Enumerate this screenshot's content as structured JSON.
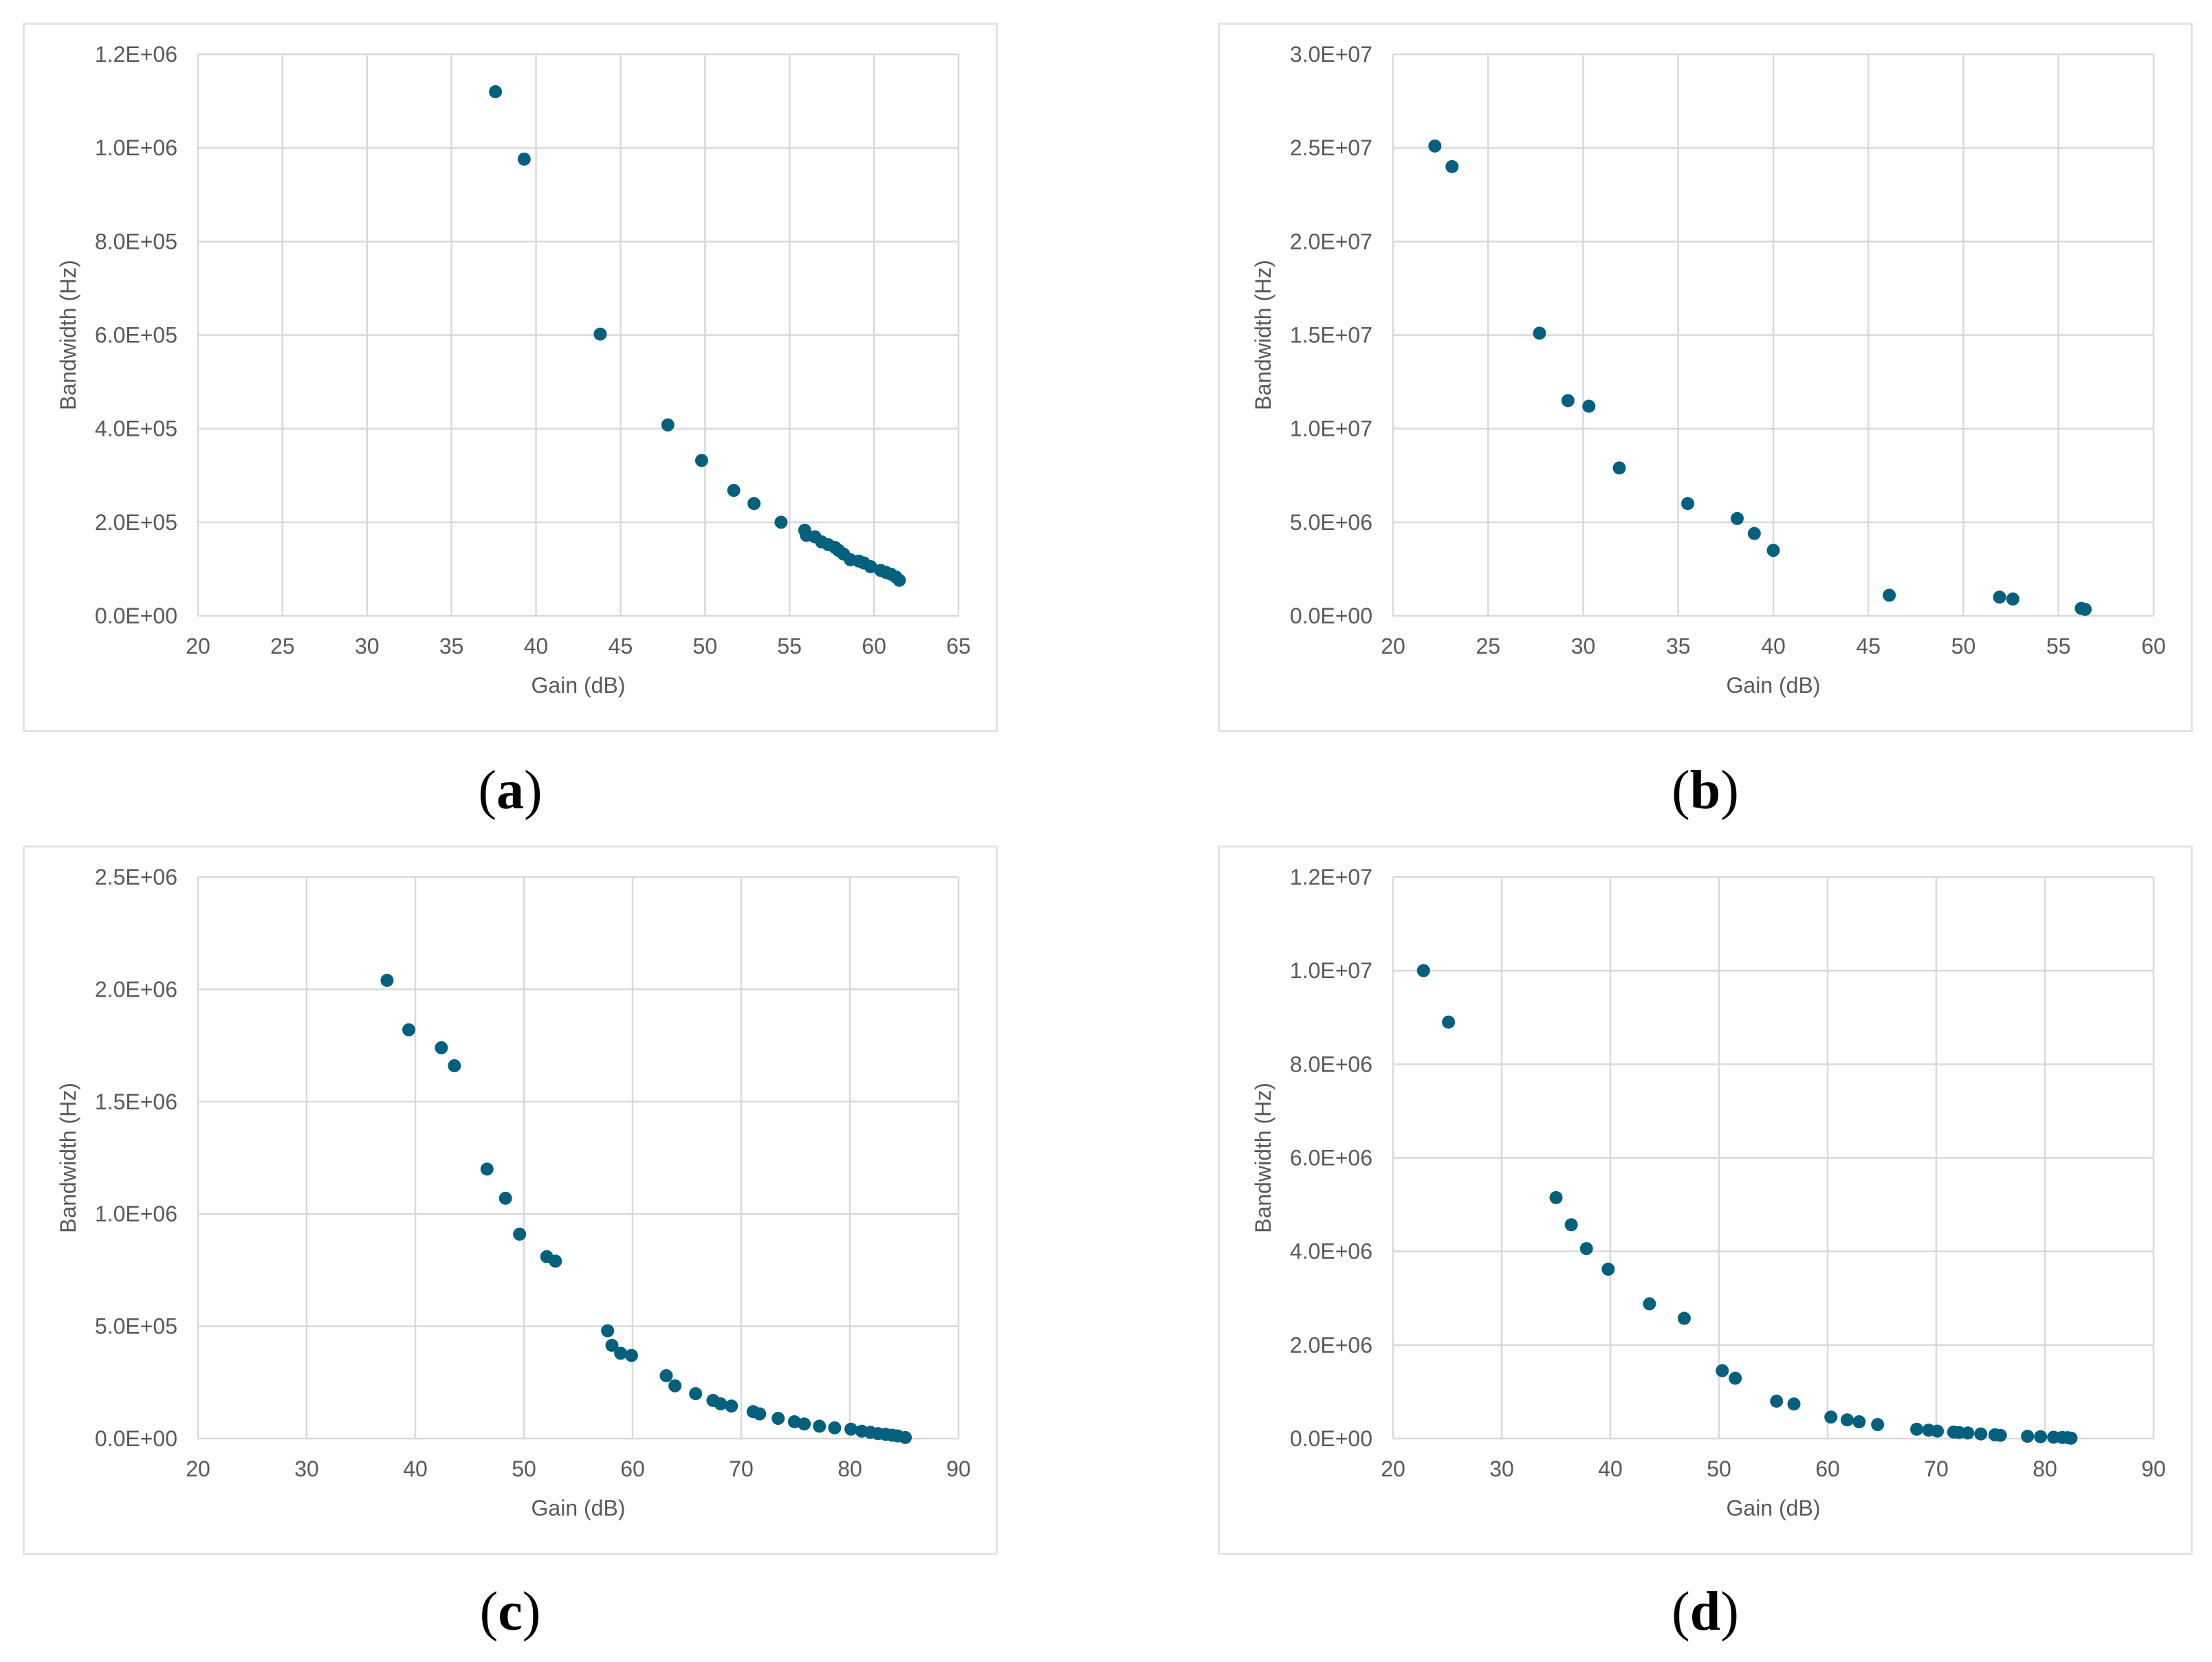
{
  "chart_data": [
    {
      "type": "scatter",
      "id": "a",
      "caption": "a",
      "xlabel": "Gain (dB)",
      "ylabel": "Bandwidth (Hz)",
      "xlim": [
        20,
        65
      ],
      "xticks": [
        20,
        25,
        30,
        35,
        40,
        45,
        50,
        55,
        60,
        65
      ],
      "ylim": [
        0,
        1200000
      ],
      "yticks": [
        0,
        200000,
        400000,
        600000,
        800000,
        1000000,
        1200000
      ],
      "ytick_labels": [
        "0.0E+00",
        "2.0E+05",
        "4.0E+05",
        "6.0E+05",
        "8.0E+05",
        "1.0E+06",
        "1.2E+06"
      ],
      "grid": true,
      "points": [
        [
          37.6,
          1120000
        ],
        [
          39.3,
          976000
        ],
        [
          43.8,
          602000
        ],
        [
          47.8,
          408000
        ],
        [
          49.8,
          332000
        ],
        [
          51.7,
          268000
        ],
        [
          52.9,
          240000
        ],
        [
          54.5,
          200000
        ],
        [
          55.9,
          183000
        ],
        [
          56.0,
          172000
        ],
        [
          56.5,
          169000
        ],
        [
          56.9,
          158000
        ],
        [
          57.3,
          152000
        ],
        [
          57.7,
          146000
        ],
        [
          57.9,
          140000
        ],
        [
          58.2,
          132000
        ],
        [
          58.6,
          120000
        ],
        [
          59.1,
          117000
        ],
        [
          59.4,
          113000
        ],
        [
          59.8,
          105000
        ],
        [
          60.4,
          97000
        ],
        [
          60.7,
          93000
        ],
        [
          61.0,
          89000
        ],
        [
          61.3,
          83000
        ],
        [
          61.5,
          76000
        ]
      ]
    },
    {
      "type": "scatter",
      "id": "b",
      "caption": "b",
      "xlabel": "Gain (dB)",
      "ylabel": "Bandwidth (Hz)",
      "xlim": [
        20,
        60
      ],
      "xticks": [
        20,
        25,
        30,
        35,
        40,
        45,
        50,
        55,
        60
      ],
      "ylim": [
        0,
        30000000
      ],
      "yticks": [
        0,
        5000000,
        10000000,
        15000000,
        20000000,
        25000000,
        30000000
      ],
      "ytick_labels": [
        "0.0E+00",
        "5.0E+06",
        "1.0E+07",
        "1.5E+07",
        "2.0E+07",
        "2.5E+07",
        "3.0E+07"
      ],
      "grid": true,
      "points": [
        [
          22.2,
          25100000
        ],
        [
          23.1,
          24000000
        ],
        [
          27.7,
          15100000
        ],
        [
          29.2,
          11500000
        ],
        [
          30.3,
          11200000
        ],
        [
          31.9,
          7900000
        ],
        [
          35.5,
          6000000
        ],
        [
          38.1,
          5200000
        ],
        [
          39.0,
          4400000
        ],
        [
          40.0,
          3500000
        ],
        [
          46.1,
          1100000
        ],
        [
          51.9,
          1000000
        ],
        [
          52.6,
          900000
        ],
        [
          56.2,
          400000
        ],
        [
          56.4,
          350000
        ]
      ]
    },
    {
      "type": "scatter",
      "id": "c",
      "caption": "c",
      "xlabel": "Gain (dB)",
      "ylabel": "Bandwidth (Hz)",
      "xlim": [
        20,
        90
      ],
      "xticks": [
        20,
        30,
        40,
        50,
        60,
        70,
        80,
        90
      ],
      "ylim": [
        0,
        2500000
      ],
      "yticks": [
        0,
        500000,
        1000000,
        1500000,
        2000000,
        2500000
      ],
      "ytick_labels": [
        "0.0E+00",
        "5.0E+05",
        "1.0E+06",
        "1.5E+06",
        "2.0E+06",
        "2.5E+06"
      ],
      "grid": true,
      "points": [
        [
          37.4,
          2040000
        ],
        [
          39.4,
          1820000
        ],
        [
          42.4,
          1740000
        ],
        [
          43.6,
          1660000
        ],
        [
          46.6,
          1200000
        ],
        [
          48.3,
          1070000
        ],
        [
          49.6,
          910000
        ],
        [
          52.1,
          810000
        ],
        [
          52.9,
          790000
        ],
        [
          57.7,
          480000
        ],
        [
          58.1,
          415000
        ],
        [
          58.9,
          380000
        ],
        [
          59.9,
          370000
        ],
        [
          63.1,
          280000
        ],
        [
          63.9,
          235000
        ],
        [
          65.8,
          200000
        ],
        [
          67.4,
          170000
        ],
        [
          68.1,
          155000
        ],
        [
          69.1,
          145000
        ],
        [
          71.1,
          120000
        ],
        [
          71.7,
          110000
        ],
        [
          73.4,
          90000
        ],
        [
          74.9,
          75000
        ],
        [
          75.8,
          65000
        ],
        [
          77.2,
          55000
        ],
        [
          78.6,
          48000
        ],
        [
          80.1,
          42000
        ],
        [
          81.1,
          33000
        ],
        [
          81.9,
          28000
        ],
        [
          82.6,
          22000
        ],
        [
          83.3,
          19000
        ],
        [
          83.9,
          15000
        ],
        [
          84.4,
          12000
        ],
        [
          85.1,
          5000
        ]
      ]
    },
    {
      "type": "scatter",
      "id": "d",
      "caption": "d",
      "xlabel": "Gain (dB)",
      "ylabel": "Bandwidth (Hz)",
      "xlim": [
        20,
        90
      ],
      "xticks": [
        20,
        30,
        40,
        50,
        60,
        70,
        80,
        90
      ],
      "ylim": [
        0,
        12000000
      ],
      "yticks": [
        0,
        2000000,
        4000000,
        6000000,
        8000000,
        10000000,
        12000000
      ],
      "ytick_labels": [
        "0.0E+00",
        "2.0E+06",
        "4.0E+06",
        "6.0E+06",
        "8.0E+06",
        "1.0E+07",
        "1.2E+07"
      ],
      "grid": true,
      "points": [
        [
          22.8,
          10000000
        ],
        [
          25.1,
          8900000
        ],
        [
          35.0,
          5150000
        ],
        [
          36.4,
          4570000
        ],
        [
          37.8,
          4060000
        ],
        [
          39.8,
          3620000
        ],
        [
          43.6,
          2880000
        ],
        [
          46.8,
          2570000
        ],
        [
          50.3,
          1450000
        ],
        [
          51.5,
          1290000
        ],
        [
          55.3,
          800000
        ],
        [
          56.9,
          740000
        ],
        [
          60.3,
          460000
        ],
        [
          61.8,
          400000
        ],
        [
          62.9,
          360000
        ],
        [
          64.6,
          300000
        ],
        [
          68.2,
          200000
        ],
        [
          69.3,
          180000
        ],
        [
          70.1,
          160000
        ],
        [
          71.6,
          140000
        ],
        [
          72.1,
          130000
        ],
        [
          72.9,
          120000
        ],
        [
          74.1,
          100000
        ],
        [
          75.4,
          80000
        ],
        [
          75.9,
          70000
        ],
        [
          78.4,
          50000
        ],
        [
          79.6,
          40000
        ],
        [
          80.8,
          30000
        ],
        [
          81.6,
          25000
        ],
        [
          82.1,
          20000
        ],
        [
          82.4,
          10000
        ]
      ]
    }
  ]
}
